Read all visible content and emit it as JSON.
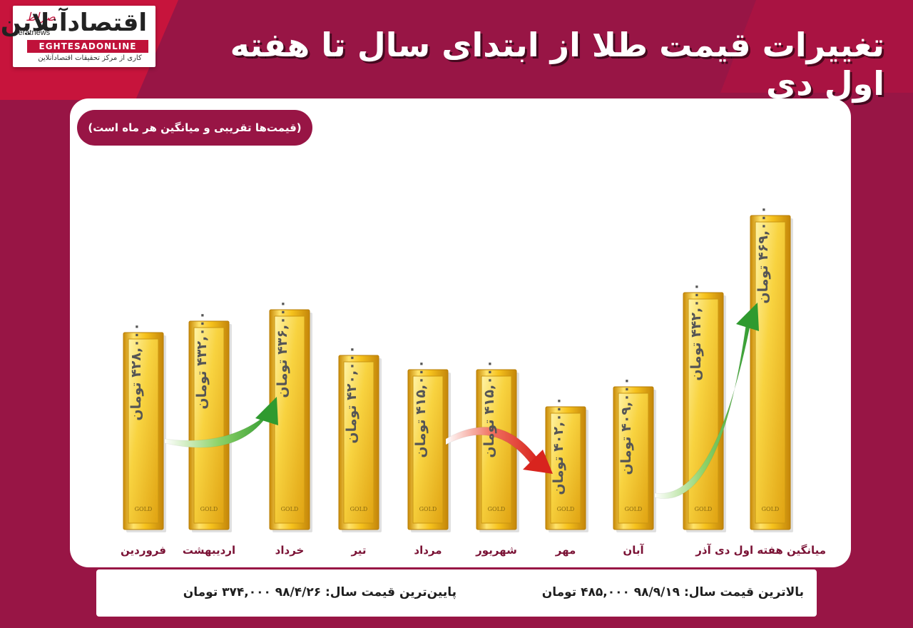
{
  "logo": {
    "brand_fa": "اقتصادآنلاین",
    "brand_en": "EGHTESADONLINE",
    "brand_sub": "کاری از مرکز تحقیقات اقتصادآنلاین",
    "news_tag": "seratnews",
    "sirat": "صراط"
  },
  "title": "تغییرات قیمت طلا از ابتدای سال تا هفته اول دی",
  "note": "(قیمت‌ها تقریبی و میانگین هر ماه است)",
  "colors": {
    "background": "#981545",
    "panel": "#ffffff",
    "gold": "#f2c21b",
    "arrow_up": "#3aa63a",
    "arrow_down": "#e0332a"
  },
  "chart_data": {
    "type": "bar",
    "unit": "تومان",
    "categories": [
      "فروردین",
      "اردیبهشت",
      "خرداد",
      "تیر",
      "مرداد",
      "شهریور",
      "مهر",
      "آبان",
      "آذر",
      "میانگین هفته اول دی"
    ],
    "values": [
      428000,
      432000,
      436000,
      420000,
      415000,
      415000,
      402000,
      409000,
      442000,
      469000
    ],
    "value_labels": [
      "۴۲۸,۰۰۰ تومان",
      "۴۳۲,۰۰۰ تومان",
      "۴۳۶,۰۰۰ تومان",
      "۴۲۰,۰۰۰ تومان",
      "۴۱۵,۰۰۰ تومان",
      "۴۱۵,۰۰۰ تومان",
      "۴۰۲,۰۰۰ تومان",
      "۴۰۹,۰۰۰ تومان",
      "۴۴۲,۰۰۰ تومان",
      "۴۶۹,۰۰۰ تومان"
    ],
    "bar_stamp": "GOLD",
    "trend_arrows": [
      {
        "from": "فروردین",
        "to": "خرداد",
        "direction": "up"
      },
      {
        "from": "مرداد",
        "to": "مهر",
        "direction": "down"
      },
      {
        "from": "آبان",
        "to": "میانگین هفته اول دی",
        "direction": "up"
      }
    ]
  },
  "footer": {
    "max": "بالاترین قیمت سال: ۹۸/۹/۱۹ ۴۸۵,۰۰۰ تومان",
    "min": "پایین‌ترین قیمت سال: ۹۸/۴/۲۶ ۳۷۴,۰۰۰ تومان"
  }
}
